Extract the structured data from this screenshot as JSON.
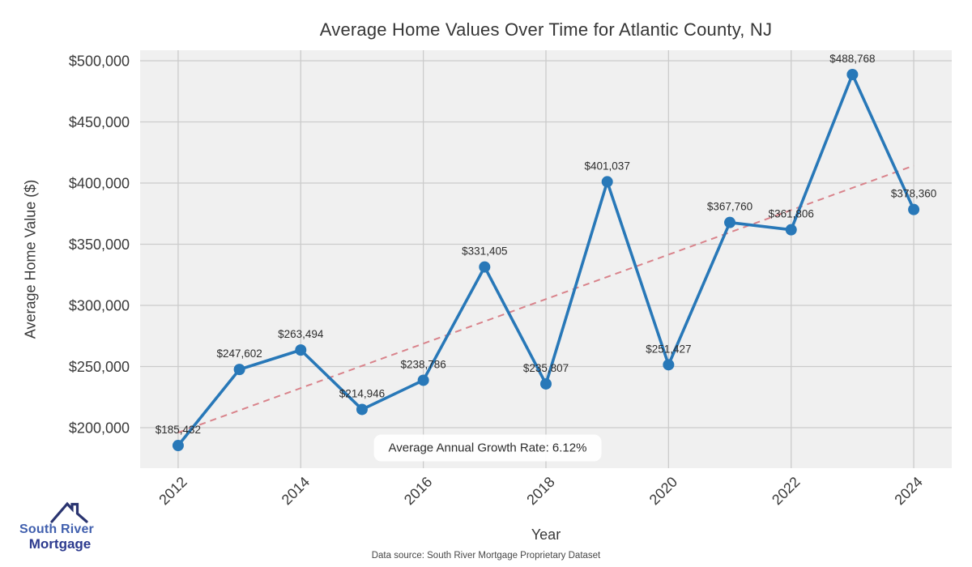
{
  "chart_data": {
    "type": "line",
    "title": "Average Home Values Over Time for Atlantic County, NJ",
    "xlabel": "Year",
    "ylabel": "Average Home Value ($)",
    "x": [
      2012,
      2013,
      2014,
      2015,
      2016,
      2017,
      2018,
      2019,
      2020,
      2021,
      2022,
      2023,
      2024
    ],
    "values": [
      185432,
      247602,
      263494,
      214946,
      238786,
      331405,
      235807,
      401037,
      251427,
      367760,
      361806,
      488768,
      378360
    ],
    "point_labels": [
      "$185,432",
      "$247,602",
      "$263,494",
      "$214,946",
      "$238,786",
      "$331,405",
      "$235,807",
      "$401,037",
      "$251,427",
      "$367,760",
      "$361,806",
      "$488,768",
      "$378,360"
    ],
    "x_ticks": [
      2012,
      2014,
      2016,
      2018,
      2020,
      2022,
      2024
    ],
    "y_ticks": [
      200000,
      250000,
      300000,
      350000,
      400000,
      450000,
      500000
    ],
    "y_tick_labels": [
      "$200,000",
      "$250,000",
      "$300,000",
      "$350,000",
      "$400,000",
      "$450,000",
      "$500,000"
    ],
    "xlim": [
      2011.38,
      2024.62
    ],
    "ylim": [
      166900,
      508600
    ],
    "grid": true,
    "trendline": "linear-regression-dashed",
    "annotation": "Average Annual Growth Rate: 6.12%",
    "colors": {
      "line": "#2878b8",
      "marker": "#2878b8",
      "trend": "#d9838b",
      "plot_background": "#f0f0f0",
      "grid": "#cbcbcb",
      "tick_text": "#3a3a3a",
      "label_text": "#2d2d2d"
    }
  },
  "footer": {
    "source": "Data source: South River Mortgage Proprietary Dataset"
  },
  "logo": {
    "line1": "South River",
    "line2": "Mortgage",
    "line1_color": "#4160ae",
    "line2_color": "#2c3a8e",
    "roof_color": "#2a3470"
  }
}
